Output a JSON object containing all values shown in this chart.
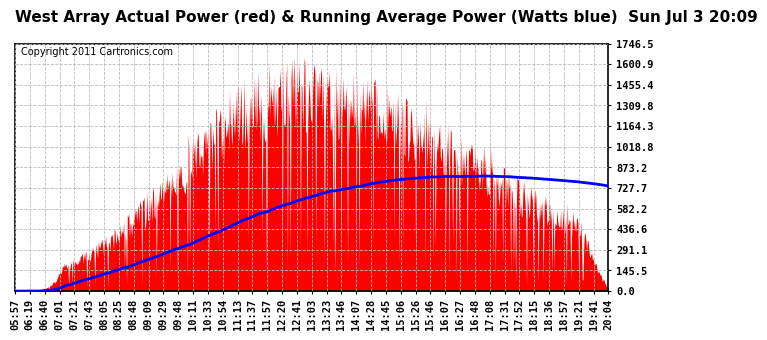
{
  "title": "West Array Actual Power (red) & Running Average Power (Watts blue)  Sun Jul 3 20:09",
  "copyright": "Copyright 2011 Cartronics.com",
  "yticks": [
    0.0,
    145.5,
    291.1,
    436.6,
    582.2,
    727.7,
    873.2,
    1018.8,
    1164.3,
    1309.8,
    1455.4,
    1600.9,
    1746.5
  ],
  "ymax": 1746.5,
  "x_labels": [
    "05:57",
    "06:19",
    "06:40",
    "07:01",
    "07:21",
    "07:43",
    "08:05",
    "08:25",
    "08:48",
    "09:09",
    "09:29",
    "09:48",
    "10:11",
    "10:33",
    "10:54",
    "11:13",
    "11:37",
    "11:57",
    "12:20",
    "12:41",
    "13:03",
    "13:23",
    "13:46",
    "14:07",
    "14:28",
    "14:45",
    "15:06",
    "15:26",
    "15:46",
    "16:07",
    "16:27",
    "16:48",
    "17:08",
    "17:31",
    "17:52",
    "18:15",
    "18:36",
    "18:57",
    "19:21",
    "19:41",
    "20:04"
  ],
  "bar_color": "#FF0000",
  "line_color": "#0000FF",
  "background_color": "#FFFFFF",
  "grid_color": "#BBBBBB",
  "title_fontsize": 11,
  "copyright_fontsize": 7,
  "axis_fontsize": 7.5
}
